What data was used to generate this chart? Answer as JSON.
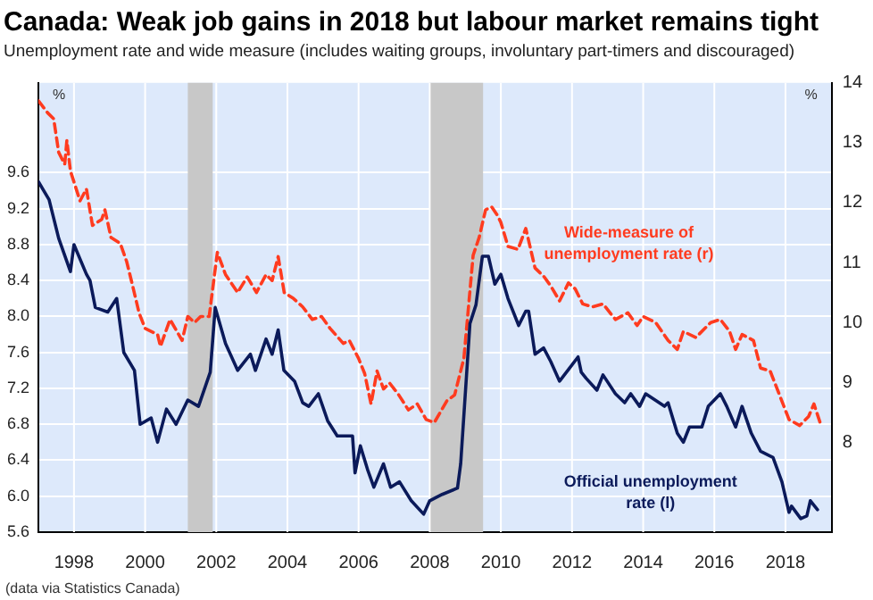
{
  "chart_data": {
    "type": "line",
    "title": "Canada: Weak job gains in 2018 but labour market remains tight",
    "subtitle": "Unemployment rate and wide measure (includes waiting groups, involuntary part-timers and discouraged)",
    "ylabel": "%",
    "y2label": "%",
    "annotations": [
      "(data via Statistics Canada)"
    ],
    "xlim": [
      1997,
      2019.3
    ],
    "xticks": [
      1998,
      2000,
      2002,
      2004,
      2006,
      2008,
      2010,
      2012,
      2014,
      2016,
      2018
    ],
    "ylim": [
      5.6,
      10.6
    ],
    "yticks": [
      {
        "value": 5.6,
        "label": "5.6"
      },
      {
        "value": 6.0,
        "label": "6.0"
      },
      {
        "value": 6.4,
        "label": "6.4"
      },
      {
        "value": 6.8,
        "label": "6.8"
      },
      {
        "value": 7.2,
        "label": "7.2"
      },
      {
        "value": 7.6,
        "label": "7.6"
      },
      {
        "value": 8.0,
        "label": "8.0"
      },
      {
        "value": 8.4,
        "label": "8.4"
      },
      {
        "value": 8.8,
        "label": "8.8"
      },
      {
        "value": 9.2,
        "label": "9.2"
      },
      {
        "value": 9.6,
        "label": "9.6"
      }
    ],
    "y2lim": [
      6.5,
      14
    ],
    "y2ticks": [
      8,
      9,
      10,
      11,
      12,
      13,
      14
    ],
    "grid": true,
    "legend": false,
    "marker": "none",
    "bands": [
      {
        "axis": "x",
        "from": 2001.2,
        "to": 2001.9,
        "color": "#c8c8c8"
      },
      {
        "axis": "x",
        "from": 2008.0,
        "to": 2009.5,
        "color": "#c8c8c8"
      }
    ],
    "series": [
      {
        "name": "Official unemployment rate (l)",
        "color": "#0b1a5a",
        "line_style": "solid",
        "axis": "y",
        "x": [
          1997.0,
          1997.3,
          1997.57,
          1997.9,
          1998.0,
          1998.35,
          1998.45,
          1998.6,
          1998.95,
          1999.2,
          1999.4,
          1999.7,
          1999.86,
          2000.17,
          2000.35,
          2000.6,
          2000.87,
          2001.2,
          2001.5,
          2001.83,
          2001.97,
          2002.26,
          2002.6,
          2002.96,
          2003.1,
          2003.4,
          2003.57,
          2003.74,
          2003.9,
          2004.2,
          2004.43,
          2004.6,
          2004.87,
          2005.13,
          2005.4,
          2005.83,
          2005.9,
          2006.05,
          2006.25,
          2006.43,
          2006.7,
          2006.9,
          2007.15,
          2007.48,
          2007.83,
          2008.0,
          2008.35,
          2008.78,
          2008.87,
          2009.13,
          2009.3,
          2009.48,
          2009.65,
          2009.83,
          2010.0,
          2010.2,
          2010.5,
          2010.7,
          2010.78,
          2010.96,
          2011.2,
          2011.4,
          2011.65,
          2011.9,
          2012.17,
          2012.26,
          2012.4,
          2012.7,
          2012.87,
          2013.22,
          2013.48,
          2013.65,
          2013.9,
          2014.07,
          2014.6,
          2014.7,
          2014.96,
          2015.13,
          2015.3,
          2015.65,
          2015.83,
          2016.17,
          2016.35,
          2016.6,
          2016.78,
          2017.04,
          2017.3,
          2017.65,
          2017.9,
          2018.1,
          2018.17,
          2018.43,
          2018.6,
          2018.7,
          2018.9
        ],
        "values": [
          9.5,
          9.3,
          8.87,
          8.5,
          8.8,
          8.47,
          8.4,
          8.1,
          8.05,
          8.2,
          7.6,
          7.4,
          6.8,
          6.87,
          6.6,
          6.97,
          6.8,
          7.07,
          7.0,
          7.38,
          8.1,
          7.7,
          7.4,
          7.58,
          7.4,
          7.75,
          7.58,
          7.85,
          7.4,
          7.28,
          7.04,
          7.0,
          7.14,
          6.84,
          6.67,
          6.67,
          6.26,
          6.56,
          6.3,
          6.1,
          6.36,
          6.1,
          6.16,
          5.95,
          5.8,
          5.95,
          6.02,
          6.09,
          6.36,
          7.92,
          8.13,
          8.67,
          8.67,
          8.36,
          8.47,
          8.2,
          7.9,
          8.06,
          8.06,
          7.58,
          7.65,
          7.5,
          7.28,
          7.41,
          7.55,
          7.38,
          7.31,
          7.18,
          7.35,
          7.14,
          7.04,
          7.14,
          7.0,
          7.14,
          7.0,
          7.04,
          6.7,
          6.6,
          6.77,
          6.77,
          7.0,
          7.14,
          7.0,
          6.77,
          7.0,
          6.7,
          6.5,
          6.43,
          6.16,
          5.82,
          5.89,
          5.75,
          5.78,
          5.95,
          5.85
        ]
      },
      {
        "name": "Wide-measure of unemployment rate (r)",
        "color": "#ff3b1f",
        "line_style": "dashed",
        "axis": "y2",
        "x": [
          1997.0,
          1997.26,
          1997.43,
          1997.57,
          1997.74,
          1997.8,
          1997.9,
          1998.17,
          1998.35,
          1998.52,
          1998.78,
          1998.87,
          1999.04,
          1999.3,
          1999.48,
          1999.65,
          1999.83,
          2000.0,
          2000.35,
          2000.43,
          2000.7,
          2001.04,
          2001.2,
          2001.39,
          2001.56,
          2001.8,
          2002.03,
          2002.26,
          2002.6,
          2002.87,
          2003.13,
          2003.4,
          2003.57,
          2003.74,
          2003.91,
          2004.17,
          2004.43,
          2004.7,
          2004.96,
          2005.2,
          2005.57,
          2005.74,
          2006.0,
          2006.17,
          2006.35,
          2006.52,
          2006.7,
          2006.87,
          2007.13,
          2007.4,
          2007.65,
          2007.9,
          2008.13,
          2008.48,
          2008.7,
          2008.96,
          2009.22,
          2009.39,
          2009.57,
          2009.74,
          2009.91,
          2010.0,
          2010.2,
          2010.48,
          2010.7,
          2010.96,
          2011.22,
          2011.4,
          2011.65,
          2011.9,
          2012.09,
          2012.3,
          2012.57,
          2012.87,
          2013.22,
          2013.57,
          2013.83,
          2014.0,
          2014.35,
          2014.7,
          2014.96,
          2015.13,
          2015.48,
          2015.9,
          2016.17,
          2016.43,
          2016.6,
          2016.78,
          2017.1,
          2017.3,
          2017.57,
          2017.8,
          2018.1,
          2018.4,
          2018.65,
          2018.8,
          2019.0
        ],
        "values": [
          13.7,
          13.5,
          13.4,
          12.84,
          12.64,
          13.04,
          12.53,
          12.03,
          12.23,
          11.62,
          11.72,
          11.88,
          11.42,
          11.32,
          11.02,
          10.61,
          10.16,
          9.9,
          9.8,
          9.6,
          10.05,
          9.7,
          10.1,
          10.0,
          10.1,
          10.1,
          11.17,
          10.8,
          10.5,
          10.76,
          10.5,
          10.8,
          10.7,
          11.1,
          10.5,
          10.4,
          10.26,
          10.05,
          10.1,
          9.9,
          9.65,
          9.7,
          9.4,
          9.15,
          8.64,
          9.19,
          8.89,
          8.99,
          8.79,
          8.54,
          8.64,
          8.38,
          8.33,
          8.69,
          8.79,
          9.4,
          11.12,
          11.42,
          11.88,
          11.93,
          11.78,
          11.67,
          11.27,
          11.22,
          11.57,
          10.91,
          10.76,
          10.61,
          10.36,
          10.66,
          10.56,
          10.31,
          10.26,
          10.31,
          10.05,
          10.16,
          9.95,
          10.1,
          10.0,
          9.7,
          9.55,
          9.85,
          9.75,
          10.0,
          10.05,
          9.85,
          9.55,
          9.8,
          9.7,
          9.24,
          9.19,
          8.84,
          8.38,
          8.28,
          8.43,
          8.64,
          8.28
        ]
      }
    ]
  }
}
